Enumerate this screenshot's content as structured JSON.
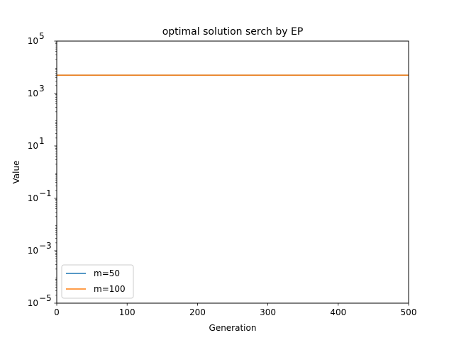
{
  "chart_data": {
    "type": "line",
    "title": "optimal solution serch by EP",
    "xlabel": "Generation",
    "ylabel": "Value",
    "xlim": [
      0,
      500
    ],
    "ylim": [
      1e-05,
      100000
    ],
    "yscale": "log",
    "xticks": [
      0,
      100,
      200,
      300,
      400,
      500
    ],
    "xtick_labels": [
      "0",
      "100",
      "200",
      "300",
      "400",
      "500"
    ],
    "yticks": [
      1e-05,
      0.001,
      0.1,
      10,
      1000,
      100000
    ],
    "ytick_labels": [
      {
        "base": "10",
        "exp": "−5"
      },
      {
        "base": "10",
        "exp": "−3"
      },
      {
        "base": "10",
        "exp": "−1"
      },
      {
        "base": "10",
        "exp": "1"
      },
      {
        "base": "10",
        "exp": "3"
      },
      {
        "base": "10",
        "exp": "5"
      }
    ],
    "grid": false,
    "legend_position": "lower-left",
    "series": [
      {
        "name": "m=50",
        "color": "#1f77b4",
        "x": [
          0,
          500
        ],
        "y": [
          5000,
          5000
        ]
      },
      {
        "name": "m=100",
        "color": "#ff7f0e",
        "x": [
          0,
          500
        ],
        "y": [
          5000,
          5000
        ]
      }
    ]
  }
}
